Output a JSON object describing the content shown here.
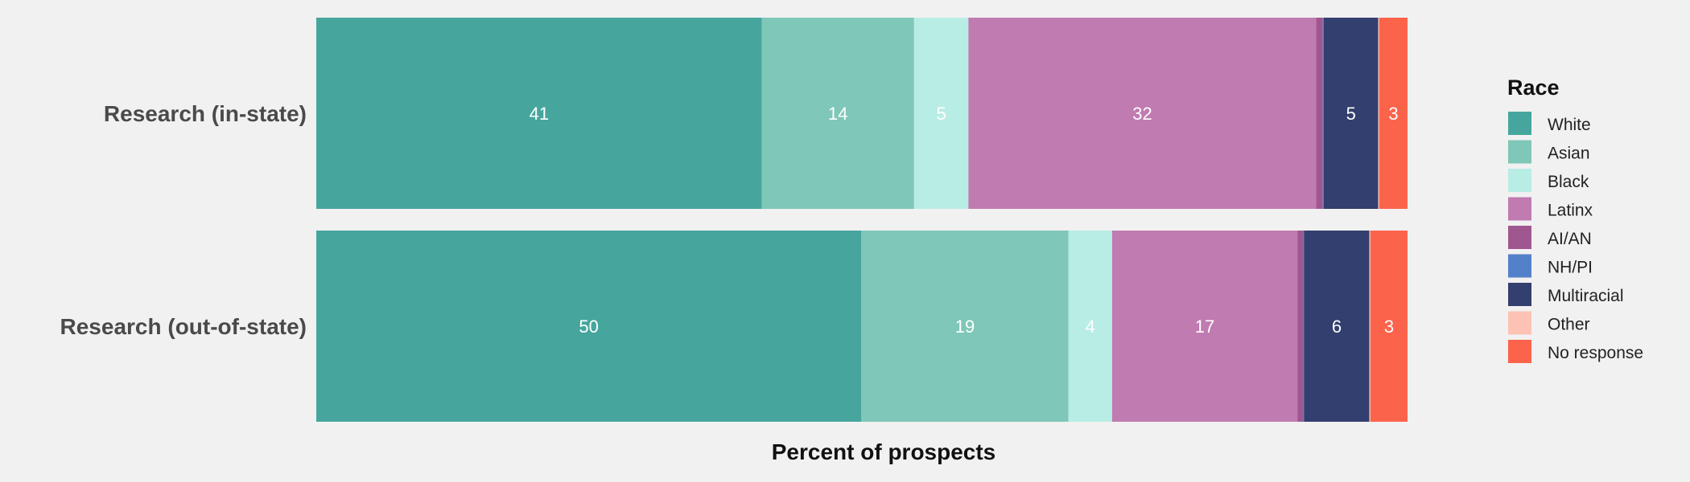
{
  "chart_data": {
    "type": "bar",
    "orientation": "horizontal",
    "stacked": true,
    "xlabel": "Percent of prospects",
    "legend_title": "Race",
    "legend_position": "right",
    "grid": false,
    "xlim": [
      0,
      100
    ],
    "categories": [
      "Research (in-state)",
      "Research (out-of-state)"
    ],
    "series": [
      {
        "name": "White",
        "color": "#46a69e",
        "values": [
          41,
          50
        ],
        "labels": [
          "41",
          "50"
        ]
      },
      {
        "name": "Asian",
        "color": "#7fc7b8",
        "values": [
          14,
          19
        ],
        "labels": [
          "14",
          "19"
        ]
      },
      {
        "name": "Black",
        "color": "#b8ede5",
        "values": [
          5,
          4
        ],
        "labels": [
          "5",
          "4"
        ]
      },
      {
        "name": "Latinx",
        "color": "#c07bb1",
        "values": [
          32,
          17
        ],
        "labels": [
          "32",
          "17"
        ]
      },
      {
        "name": "AI/AN",
        "color": "#a0578f",
        "values": [
          0.6,
          0.5
        ],
        "labels": [
          "",
          ""
        ]
      },
      {
        "name": "NH/PI",
        "color": "#5381c9",
        "values": [
          0.1,
          0.1
        ],
        "labels": [
          "",
          ""
        ]
      },
      {
        "name": "Multiracial",
        "color": "#333f6e",
        "values": [
          5,
          6
        ],
        "labels": [
          "5",
          "6"
        ]
      },
      {
        "name": "Other",
        "color": "#fcc2b4",
        "values": [
          0.1,
          0.1
        ],
        "labels": [
          "",
          ""
        ]
      },
      {
        "name": "No response",
        "color": "#fc634b",
        "values": [
          2.6,
          3.4
        ],
        "labels": [
          "3",
          "3"
        ]
      }
    ]
  }
}
